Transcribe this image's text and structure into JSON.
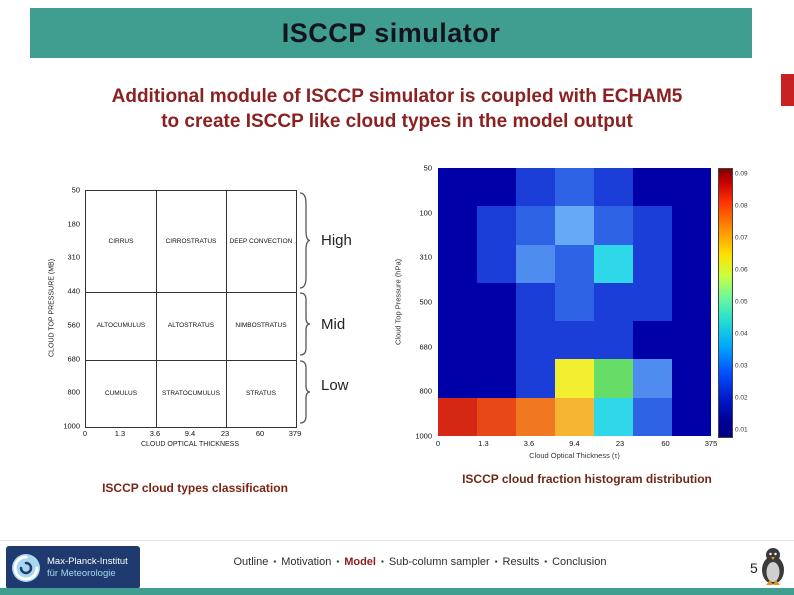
{
  "slide": {
    "title": "ISCCP simulator",
    "heading_line1": "Additional module of ISCCP simulator is coupled with ECHAM5",
    "heading_line2": "to create ISCCP like cloud types in the model output"
  },
  "chart_data": [
    {
      "type": "table",
      "title": "ISCCP cloud types classification",
      "xlabel": "CLOUD OPTICAL THICKNESS",
      "ylabel": "CLOUD TOP PRESSURE (MB)",
      "x_ticks": [
        "0",
        "1.3",
        "3.6",
        "9.4",
        "23",
        "60",
        "379"
      ],
      "y_ticks": [
        "50",
        "180",
        "310",
        "440",
        "560",
        "680",
        "800",
        "1000"
      ],
      "rows": [
        {
          "group": "High",
          "cells": [
            "CIRRUS",
            "CIRROSTRATUS",
            "DEEP CONVECTION"
          ]
        },
        {
          "group": "Mid",
          "cells": [
            "ALTOCUMULUS",
            "ALTOSTRATUS",
            "NIMBOSTRATUS"
          ]
        },
        {
          "group": "Low",
          "cells": [
            "CUMULUS",
            "STRATOCUMULUS",
            "STRATUS"
          ]
        }
      ]
    },
    {
      "type": "heatmap",
      "title": "ISCCP cloud fraction histogram distribution",
      "xlabel": "Cloud Optical Thickness (τ)",
      "ylabel": "Cloud Top Pressure (hPa)",
      "x_ticks": [
        "0",
        "1.3",
        "3.6",
        "9.4",
        "23",
        "60",
        "375"
      ],
      "y_ticks": [
        "50",
        "100",
        "310",
        "500",
        "680",
        "800",
        "1000"
      ],
      "colorbar_ticks": [
        "0.09",
        "0.08",
        "0.07",
        "0.06",
        "0.05",
        "0.04",
        "0.03",
        "0.02",
        "0.01"
      ],
      "colorbar_range": [
        0.01,
        0.1
      ],
      "cell_colors": [
        [
          "#0000a8",
          "#0000a8",
          "#1c3ed8",
          "#2f63e6",
          "#1c3ed8",
          "#0000a8",
          "#0000a8"
        ],
        [
          "#0000a8",
          "#1c3ed8",
          "#2f63e6",
          "#66aaf5",
          "#2f63e6",
          "#1c3ed8",
          "#0000a8"
        ],
        [
          "#0000a8",
          "#1c3ed8",
          "#4f8cf0",
          "#2f63e6",
          "#2fd8e8",
          "#1c3ed8",
          "#0000a8"
        ],
        [
          "#0000a8",
          "#0000a8",
          "#1c3ed8",
          "#2f63e6",
          "#1c3ed8",
          "#1c3ed8",
          "#0000a8"
        ],
        [
          "#0000a8",
          "#0000a8",
          "#1c3ed8",
          "#1c3ed8",
          "#1c3ed8",
          "#0000a8",
          "#0000a8"
        ],
        [
          "#0000a8",
          "#0000a8",
          "#1c3ed8",
          "#f2ee30",
          "#66dd66",
          "#4f8cf0",
          "#0000a8"
        ],
        [
          "#d42814",
          "#e84818",
          "#f07820",
          "#f5b431",
          "#2fd8e8",
          "#2f63e6",
          "#0000a8"
        ]
      ],
      "values_approx": [
        [
          0.01,
          0.01,
          0.02,
          0.03,
          0.02,
          0.01,
          0.01
        ],
        [
          0.01,
          0.02,
          0.03,
          0.04,
          0.03,
          0.02,
          0.01
        ],
        [
          0.01,
          0.02,
          0.035,
          0.03,
          0.05,
          0.02,
          0.01
        ],
        [
          0.01,
          0.01,
          0.02,
          0.03,
          0.02,
          0.02,
          0.01
        ],
        [
          0.01,
          0.01,
          0.02,
          0.02,
          0.02,
          0.01,
          0.01
        ],
        [
          0.01,
          0.01,
          0.02,
          0.07,
          0.06,
          0.035,
          0.01
        ],
        [
          0.09,
          0.085,
          0.08,
          0.075,
          0.05,
          0.03,
          0.01
        ]
      ]
    }
  ],
  "footer": {
    "nav": [
      {
        "label": "Outline",
        "emphasis": false
      },
      {
        "label": "Motivation",
        "emphasis": false
      },
      {
        "label": "Model",
        "emphasis": true
      },
      {
        "label": "Sub-column sampler",
        "emphasis": false
      },
      {
        "label": "Results",
        "emphasis": false
      },
      {
        "label": "Conclusion",
        "emphasis": false
      }
    ],
    "separator": "▪",
    "page_number": "5",
    "logo_line1": "Max-Planck-Institut",
    "logo_line2": "für Meteorologie"
  },
  "colors": {
    "header_bar": "#3f9e90",
    "heading_text": "#8b2121",
    "accent": "#c62222",
    "caption_text": "#7a2418",
    "footer_bar": "#3f9e90",
    "logo_bg": "#1e3a6e"
  }
}
